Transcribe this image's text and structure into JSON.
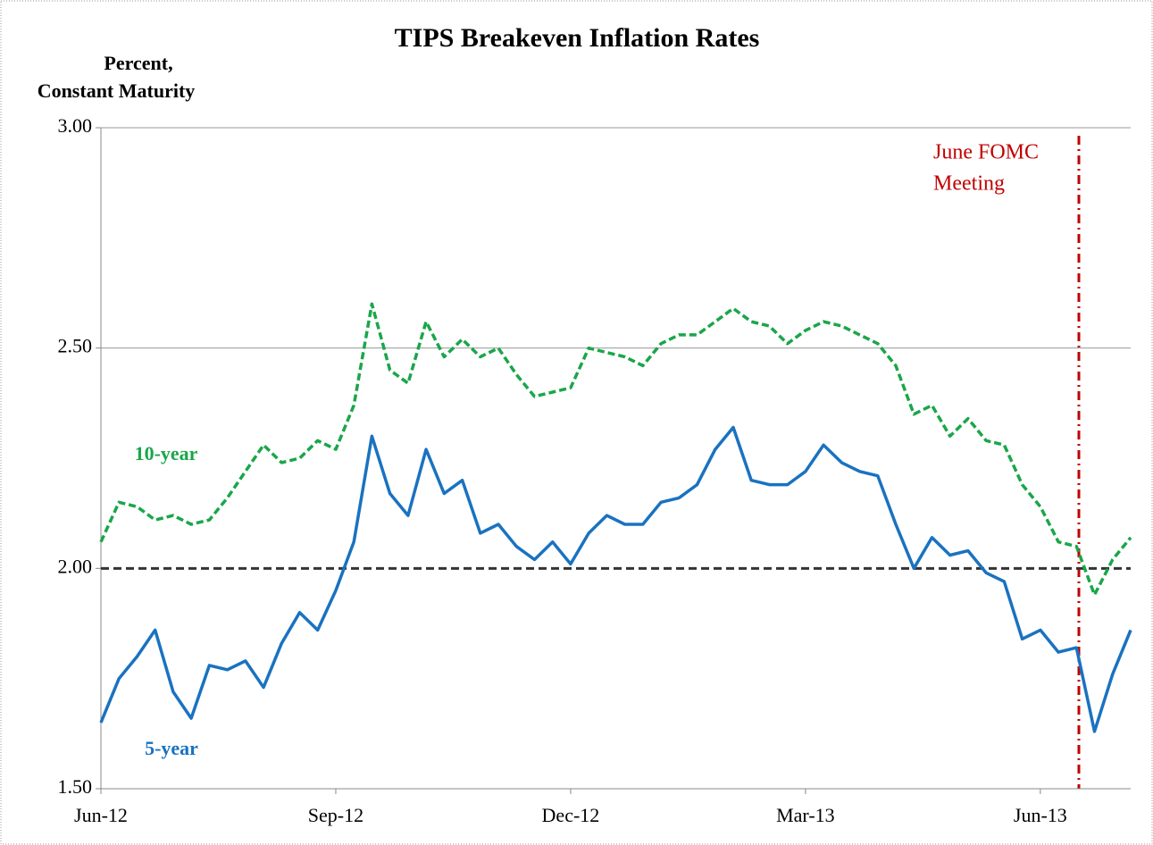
{
  "chart_data": {
    "type": "line",
    "title": "TIPS Breakeven Inflation Rates",
    "y_label": [
      "Percent,",
      "Constant Maturity"
    ],
    "categories": [
      "Jun-12",
      null,
      null,
      null,
      null,
      null,
      null,
      null,
      null,
      null,
      null,
      null,
      null,
      "Sep-12",
      null,
      null,
      null,
      null,
      null,
      null,
      null,
      null,
      null,
      null,
      null,
      null,
      "Dec-12",
      null,
      null,
      null,
      null,
      null,
      null,
      null,
      null,
      null,
      null,
      null,
      null,
      "Mar-13",
      null,
      null,
      null,
      null,
      null,
      null,
      null,
      null,
      null,
      null,
      null,
      null,
      "Jun-13",
      null,
      null,
      null,
      null,
      null
    ],
    "series": [
      {
        "name": "10-year",
        "color": "#1aa64a",
        "dash": true,
        "values": [
          2.06,
          2.15,
          2.14,
          2.11,
          2.12,
          2.1,
          2.11,
          2.16,
          2.22,
          2.28,
          2.24,
          2.25,
          2.29,
          2.27,
          2.37,
          2.6,
          2.45,
          2.42,
          2.56,
          2.48,
          2.52,
          2.48,
          2.5,
          2.44,
          2.39,
          2.4,
          2.41,
          2.5,
          2.49,
          2.48,
          2.46,
          2.51,
          2.53,
          2.53,
          2.56,
          2.59,
          2.56,
          2.55,
          2.51,
          2.54,
          2.56,
          2.55,
          2.53,
          2.51,
          2.46,
          2.35,
          2.37,
          2.3,
          2.34,
          2.29,
          2.28,
          2.19,
          2.14,
          2.06,
          2.05,
          1.94,
          2.02,
          2.07
        ]
      },
      {
        "name": "5-year",
        "color": "#1a72c0",
        "dash": false,
        "values": [
          1.65,
          1.75,
          1.8,
          1.86,
          1.72,
          1.66,
          1.78,
          1.77,
          1.79,
          1.73,
          1.83,
          1.9,
          1.86,
          1.95,
          2.06,
          2.3,
          2.17,
          2.12,
          2.27,
          2.17,
          2.2,
          2.08,
          2.1,
          2.05,
          2.02,
          2.06,
          2.01,
          2.08,
          2.12,
          2.1,
          2.1,
          2.15,
          2.16,
          2.19,
          2.27,
          2.32,
          2.2,
          2.19,
          2.19,
          2.22,
          2.28,
          2.24,
          2.22,
          2.21,
          2.1,
          2.0,
          2.07,
          2.03,
          2.04,
          1.99,
          1.97,
          1.84,
          1.86,
          1.81,
          1.82,
          1.63,
          1.76,
          1.86
        ]
      }
    ],
    "ylim": [
      1.5,
      3.0
    ],
    "yticks": [
      {
        "value": 1.5,
        "label": "1.50"
      },
      {
        "value": 2.0,
        "label": "2.00"
      },
      {
        "value": 2.5,
        "label": "2.50"
      },
      {
        "value": 3.0,
        "label": "3.00"
      }
    ],
    "grid": true,
    "reference_line": 2,
    "annotation": [
      "June FOMC",
      "Meeting"
    ]
  }
}
